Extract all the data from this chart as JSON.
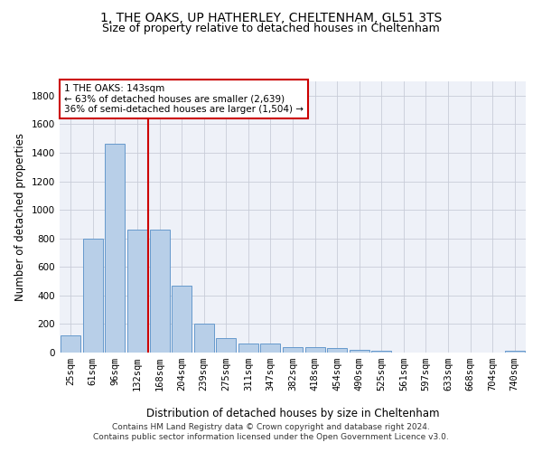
{
  "title": "1, THE OAKS, UP HATHERLEY, CHELTENHAM, GL51 3TS",
  "subtitle": "Size of property relative to detached houses in Cheltenham",
  "xlabel": "Distribution of detached houses by size in Cheltenham",
  "ylabel": "Number of detached properties",
  "footer_line1": "Contains HM Land Registry data © Crown copyright and database right 2024.",
  "footer_line2": "Contains public sector information licensed under the Open Government Licence v3.0.",
  "categories": [
    "25sqm",
    "61sqm",
    "96sqm",
    "132sqm",
    "168sqm",
    "204sqm",
    "239sqm",
    "275sqm",
    "311sqm",
    "347sqm",
    "382sqm",
    "418sqm",
    "454sqm",
    "490sqm",
    "525sqm",
    "561sqm",
    "597sqm",
    "633sqm",
    "668sqm",
    "704sqm",
    "740sqm"
  ],
  "values": [
    120,
    800,
    1460,
    860,
    860,
    470,
    200,
    100,
    65,
    65,
    40,
    35,
    30,
    22,
    10,
    2,
    1,
    1,
    1,
    1,
    15
  ],
  "bar_color": "#b8cfe8",
  "bar_edge_color": "#6699cc",
  "vline_x": 3.5,
  "vline_color": "#cc0000",
  "annotation_line1": "1 THE OAKS: 143sqm",
  "annotation_line2": "← 63% of detached houses are smaller (2,639)",
  "annotation_line3": "36% of semi-detached houses are larger (1,504) →",
  "annotation_box_color": "#cc0000",
  "ylim": [
    0,
    1900
  ],
  "yticks": [
    0,
    200,
    400,
    600,
    800,
    1000,
    1200,
    1400,
    1600,
    1800
  ],
  "bg_color": "#eef1f8",
  "grid_color": "#c8ccd8",
  "title_fontsize": 10,
  "subtitle_fontsize": 9,
  "axis_label_fontsize": 8.5,
  "tick_fontsize": 7.5,
  "annotation_fontsize": 7.5,
  "footer_fontsize": 6.5
}
